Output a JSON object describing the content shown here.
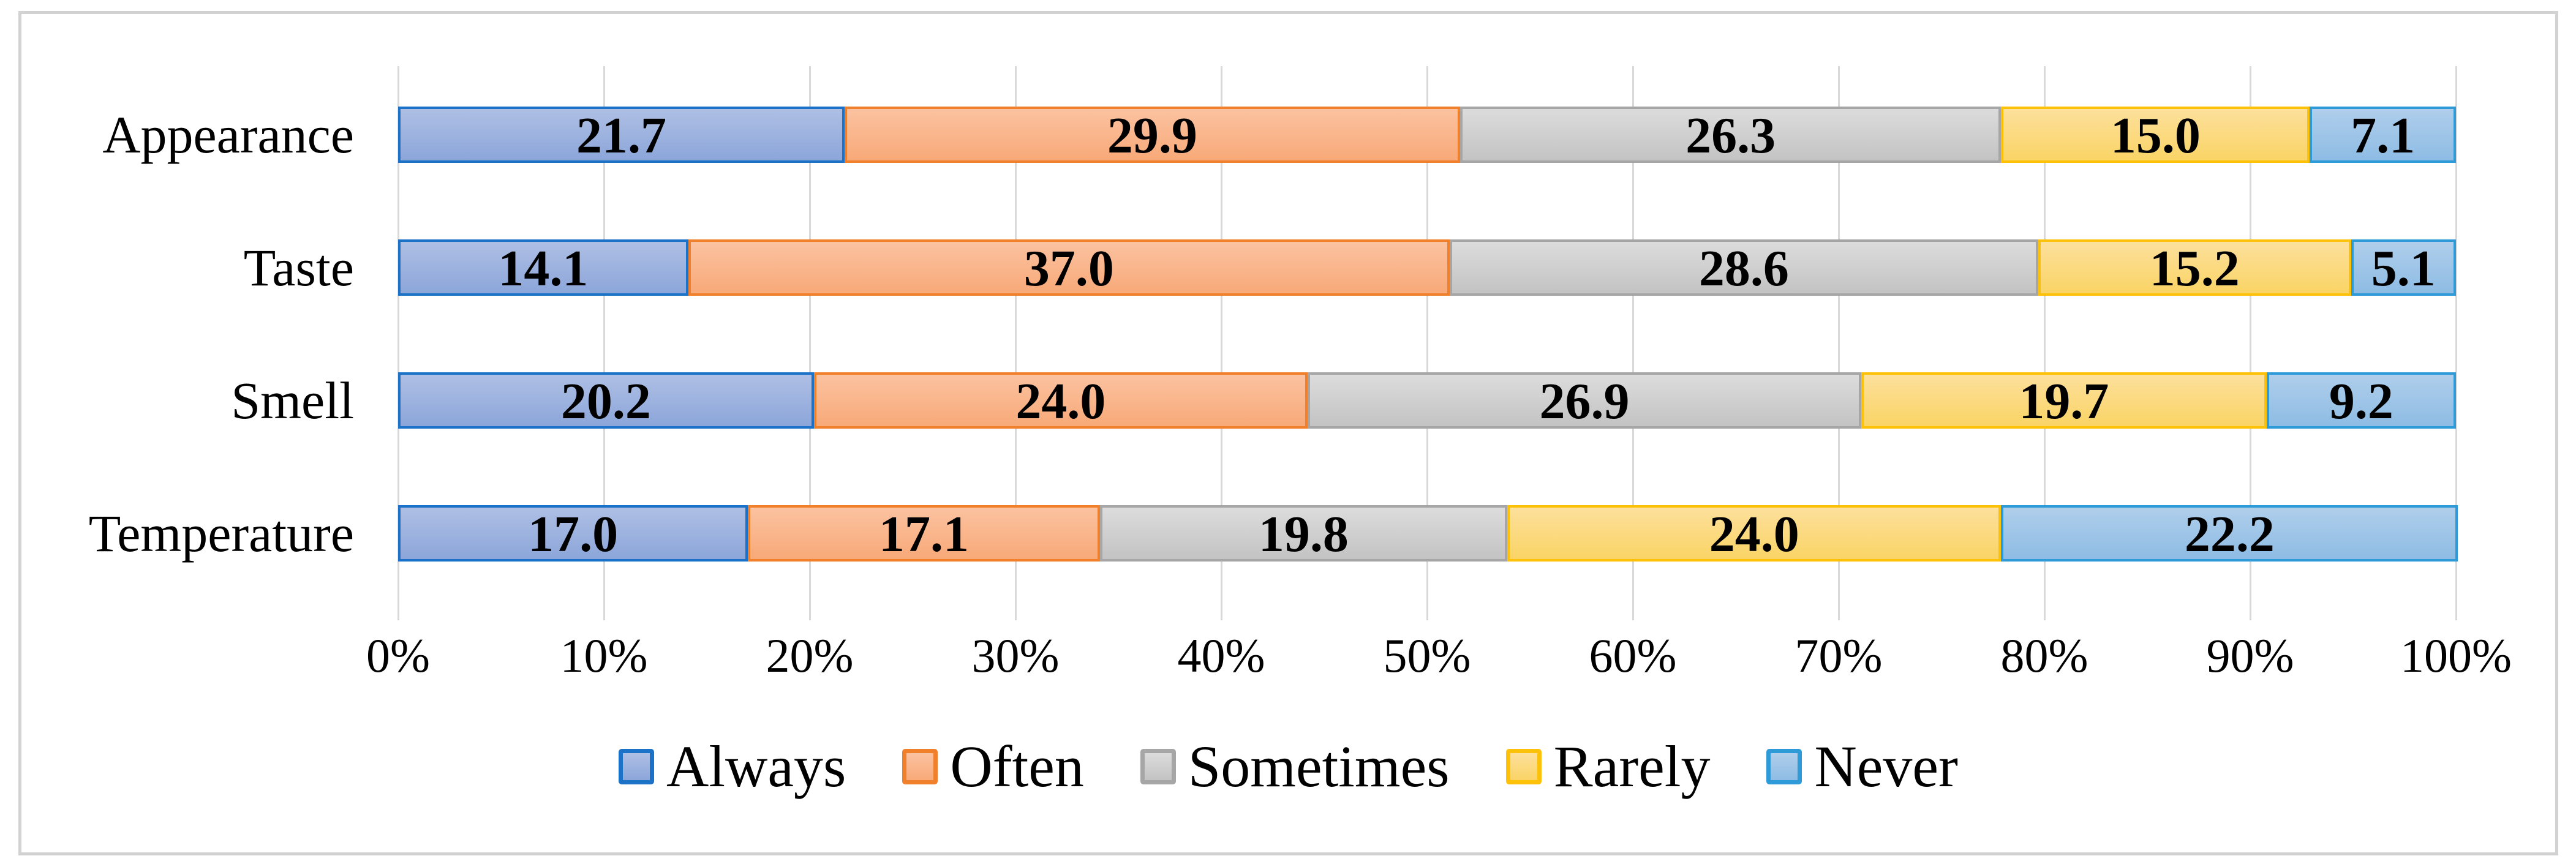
{
  "figure": {
    "background_color": "#ffffff",
    "border_color": "#d2d2d2",
    "text_color": "#000000",
    "gridline_color": "#d9d9d9"
  },
  "chart_data": {
    "type": "bar",
    "variant": "horizontal-stacked-100",
    "title": "",
    "xlabel": "",
    "ylabel": "",
    "categories": [
      "Appearance",
      "Taste",
      "Smell",
      "Temperature"
    ],
    "series": [
      {
        "name": "Always",
        "values": [
          21.7,
          14.1,
          20.2,
          17.0
        ],
        "labels": [
          "21.7",
          "14.1",
          "20.2",
          "17.0"
        ],
        "fill_top": "#aebfe4",
        "fill_bottom": "#8ca6da",
        "border": "#1b72c6"
      },
      {
        "name": "Often",
        "values": [
          29.9,
          37.0,
          24.0,
          17.1
        ],
        "labels": [
          "29.9",
          "37.0",
          "24.0",
          "17.1"
        ],
        "fill_top": "#fbc2a0",
        "fill_bottom": "#f8a978",
        "border": "#f0802b"
      },
      {
        "name": "Sometimes",
        "values": [
          26.3,
          28.6,
          26.9,
          19.8
        ],
        "labels": [
          "26.3",
          "28.6",
          "26.9",
          "19.8"
        ],
        "fill_top": "#dcdcdc",
        "fill_bottom": "#c3c3c3",
        "border": "#a6a6a6"
      },
      {
        "name": "Rarely",
        "values": [
          15.0,
          15.2,
          19.7,
          24.0
        ],
        "labels": [
          "15.0",
          "15.2",
          "19.7",
          "24.0"
        ],
        "fill_top": "#fde09c",
        "fill_bottom": "#fad465",
        "border": "#fec10a"
      },
      {
        "name": "Never",
        "values": [
          7.1,
          5.1,
          9.2,
          22.2
        ],
        "labels": [
          "7.1",
          "5.1",
          "9.2",
          "22.2"
        ],
        "fill_top": "#afceeb",
        "fill_bottom": "#8ebce4",
        "border": "#2e9bd8"
      }
    ],
    "x_axis": {
      "min": 0,
      "max": 100,
      "tick_step": 10,
      "tick_labels": [
        "0%",
        "10%",
        "20%",
        "30%",
        "40%",
        "50%",
        "60%",
        "70%",
        "80%",
        "90%",
        "100%"
      ]
    },
    "grid": true,
    "value_labels_shown": true,
    "legend_position": "bottom",
    "legend_items": [
      "Always",
      "Often",
      "Sometimes",
      "Rarely",
      "Never"
    ]
  }
}
